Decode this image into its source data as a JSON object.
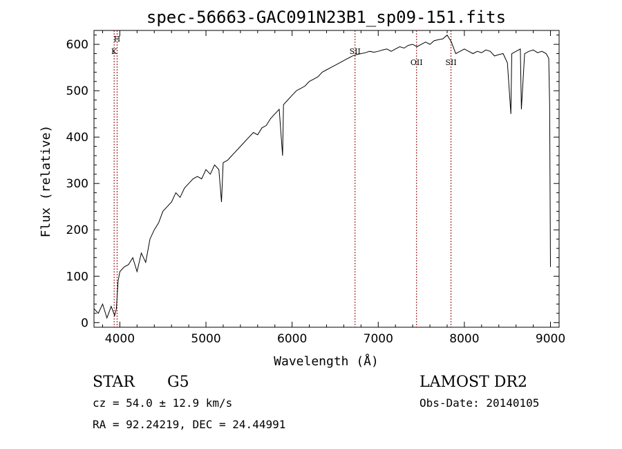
{
  "chart_data": {
    "type": "line",
    "title": "spec-56663-GAC091N23B1_sp09-151.fits",
    "xlabel": "Wavelength (Å)",
    "ylabel": "Flux (relative)",
    "xlim": [
      3700,
      9100
    ],
    "ylim": [
      -10,
      630
    ],
    "xticks": [
      4000,
      5000,
      6000,
      7000,
      8000,
      9000
    ],
    "yticks": [
      0,
      100,
      200,
      300,
      400,
      500,
      600
    ],
    "xtick_labels": [
      "4000",
      "5000",
      "6000",
      "7000",
      "8000",
      "9000"
    ],
    "ytick_labels": [
      "0",
      "100",
      "200",
      "300",
      "400",
      "500",
      "600"
    ],
    "line_color": "#000000",
    "marker_color": "#8b0000",
    "series": [
      {
        "x": [
          3700,
          3750,
          3800,
          3850,
          3900,
          3940,
          3960,
          3980,
          4000,
          4050,
          4100,
          4150,
          4200,
          4250,
          4300,
          4350,
          4400,
          4450,
          4500,
          4550,
          4600,
          4650,
          4700,
          4750,
          4800,
          4850,
          4900,
          4950,
          5000,
          5050,
          5100,
          5150,
          5180,
          5200,
          5250,
          5300,
          5350,
          5400,
          5450,
          5500,
          5550,
          5600,
          5650,
          5700,
          5750,
          5800,
          5850,
          5890,
          5900,
          5950,
          6000,
          6050,
          6100,
          6150,
          6200,
          6250,
          6300,
          6350,
          6400,
          6450,
          6500,
          6550,
          6600,
          6650,
          6700,
          6750,
          6800,
          6850,
          6900,
          6950,
          7000,
          7050,
          7100,
          7150,
          7200,
          7250,
          7300,
          7350,
          7400,
          7450,
          7500,
          7550,
          7600,
          7650,
          7700,
          7750,
          7800,
          7850,
          7900,
          7950,
          8000,
          8050,
          8100,
          8150,
          8200,
          8250,
          8300,
          8350,
          8400,
          8450,
          8500,
          8540,
          8550,
          8600,
          8650,
          8662,
          8700,
          8750,
          8800,
          8850,
          8900,
          8950,
          8980,
          8990,
          9000
        ],
        "y": [
          30,
          20,
          40,
          10,
          35,
          15,
          30,
          90,
          110,
          120,
          125,
          140,
          110,
          150,
          130,
          180,
          200,
          215,
          240,
          250,
          260,
          280,
          270,
          290,
          300,
          310,
          315,
          310,
          330,
          320,
          340,
          330,
          260,
          345,
          350,
          360,
          370,
          380,
          390,
          400,
          410,
          405,
          420,
          425,
          440,
          450,
          460,
          360,
          470,
          480,
          490,
          500,
          505,
          510,
          520,
          525,
          530,
          540,
          545,
          550,
          555,
          560,
          565,
          570,
          575,
          578,
          580,
          582,
          585,
          583,
          585,
          588,
          590,
          585,
          590,
          595,
          592,
          598,
          600,
          595,
          600,
          605,
          600,
          608,
          610,
          612,
          620,
          605,
          580,
          585,
          590,
          585,
          580,
          585,
          582,
          588,
          585,
          575,
          578,
          580,
          560,
          450,
          580,
          585,
          590,
          460,
          580,
          585,
          588,
          582,
          585,
          580,
          570,
          470,
          120
        ]
      }
    ],
    "line_markers": [
      {
        "label": "H",
        "x": 3968
      },
      {
        "label": "K",
        "x": 3934
      },
      {
        "label": "SII",
        "x": 6731
      },
      {
        "label": "OII",
        "x": 7445
      },
      {
        "label": "SII",
        "x": 7845
      }
    ]
  },
  "info": {
    "object_class": "STAR",
    "subclass": "G5",
    "release": "LAMOST DR2",
    "cz_line": "cz = 54.0 ± 12.9 km/s",
    "obs_date_line": "Obs-Date: 20140105",
    "coords_line": "RA =  92.24219, DEC =  24.44991"
  }
}
